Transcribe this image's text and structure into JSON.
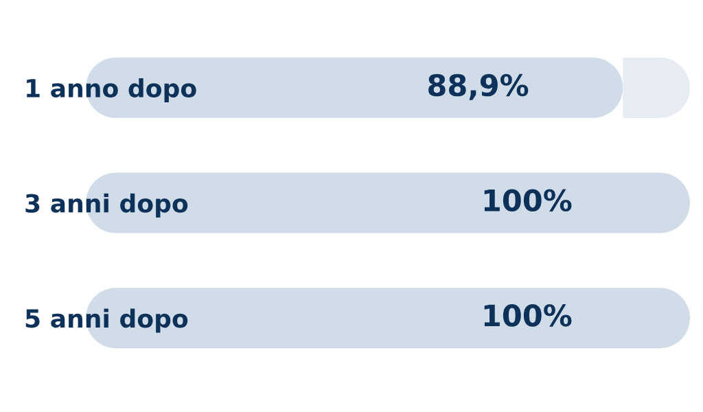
{
  "chart_data": {
    "type": "bar",
    "orientation": "horizontal",
    "stacked": true,
    "categories": [
      "1 anno dopo",
      "3 anni dopo",
      "5 anni dopo"
    ],
    "series": [
      {
        "color": "#d0dde9",
        "values": [
          88.9,
          100,
          100
        ],
        "value_labels": [
          "88,9%",
          "100%",
          "100%"
        ]
      },
      {
        "color": "#e6ecf2",
        "values": [
          11.1,
          null,
          null
        ]
      }
    ],
    "xlim": [
      0,
      100
    ],
    "tick_labels": "y"
  }
}
